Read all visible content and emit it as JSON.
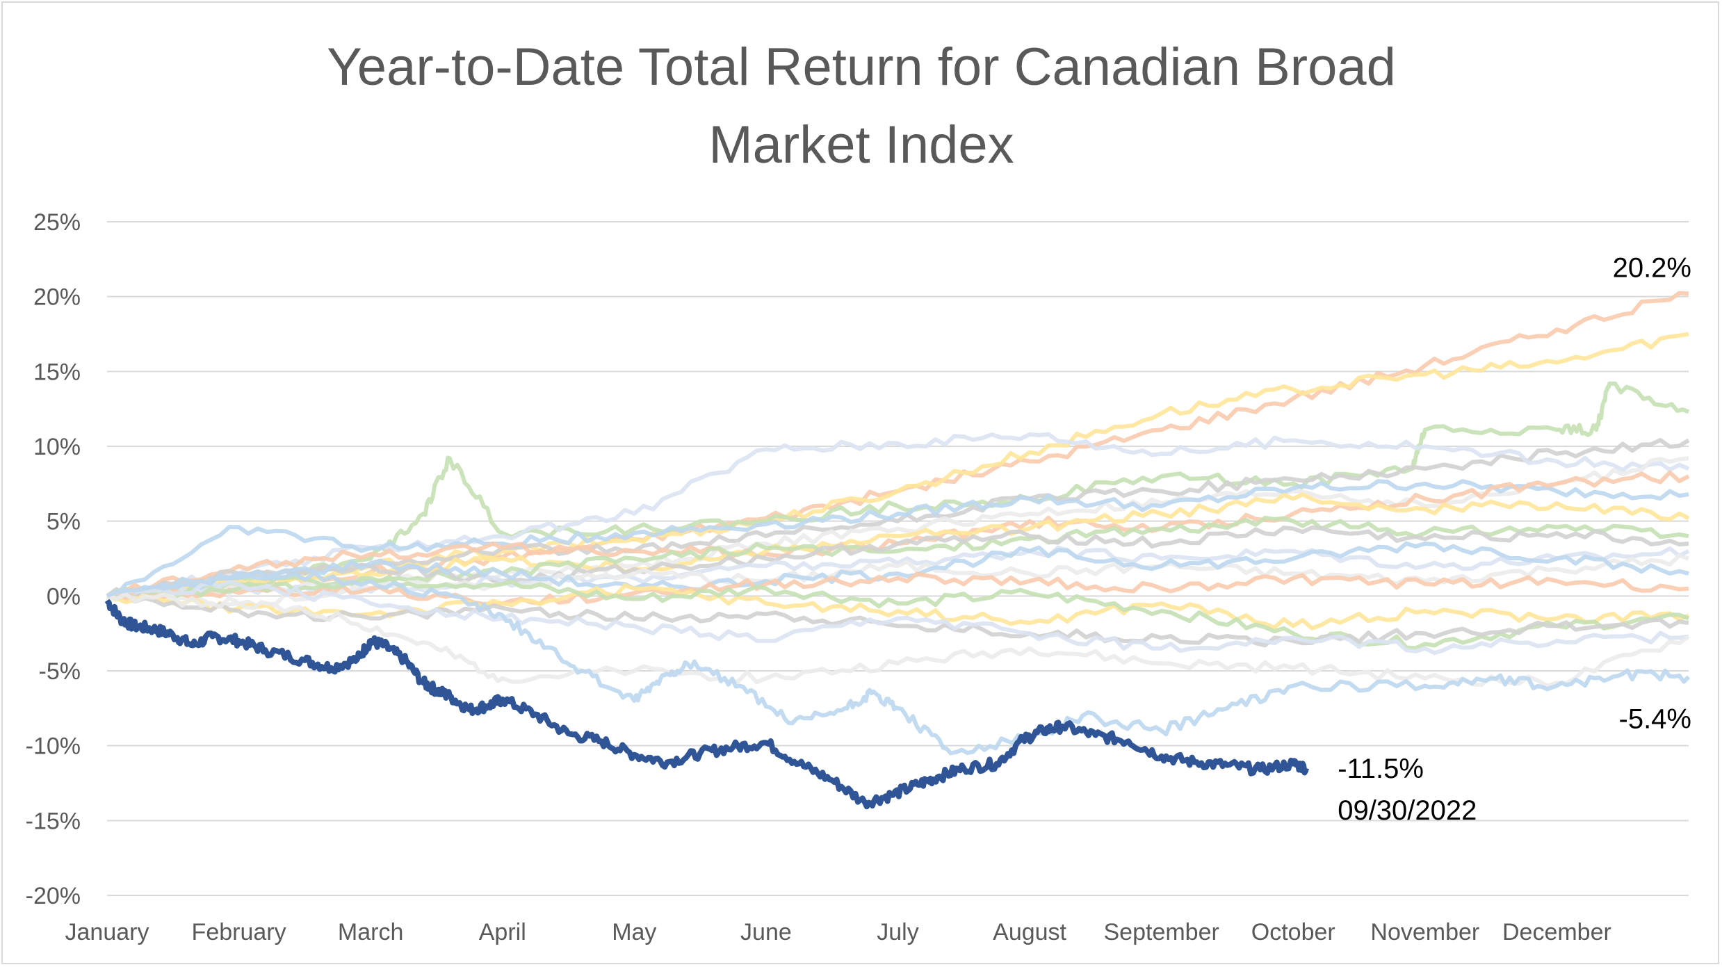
{
  "chart_data": {
    "type": "line",
    "title_lines": [
      "Year-to-Date Total Return for Canadian Broad",
      "Market Index"
    ],
    "xlabel": "",
    "ylabel": "",
    "x_categories": [
      "January",
      "February",
      "March",
      "April",
      "May",
      "June",
      "July",
      "August",
      "September",
      "October",
      "November",
      "December"
    ],
    "x_range": [
      0,
      12
    ],
    "y_ticks": [
      25,
      20,
      15,
      10,
      5,
      0,
      -5,
      -10,
      -15,
      -20
    ],
    "y_tick_labels": [
      "25%",
      "20%",
      "15%",
      "10%",
      "5%",
      "0%",
      "-5%",
      "-10%",
      "-15%",
      "-20%"
    ],
    "ylim": [
      -20,
      25
    ],
    "grid": "horizontal",
    "legend": "none",
    "colors": {
      "highlight": "#2f5597",
      "background_series": [
        "#f8cbad",
        "#ffe699",
        "#c5e0b4",
        "#d0d0d0",
        "#dae3f3",
        "#ebebeb",
        "#bdd7ee"
      ]
    },
    "highlight_series": {
      "x": [
        0,
        0.1,
        0.2,
        0.35,
        0.5,
        0.65,
        0.8,
        1.0,
        1.2,
        1.5,
        1.7,
        1.9,
        2.0,
        2.1,
        2.25,
        2.4,
        2.5,
        2.6,
        2.75,
        2.9,
        3.0,
        3.25,
        3.5,
        3.75,
        4.0,
        4.25,
        4.5,
        4.75,
        5.0,
        5.25,
        5.5,
        5.75,
        5.95,
        6.15,
        6.3,
        6.5,
        6.75,
        6.95,
        7.1,
        7.25,
        7.5,
        7.75,
        8.0,
        8.25,
        8.5,
        8.75,
        9.0,
        9.1
      ],
      "y": [
        -0.3,
        -1.5,
        -2.0,
        -2.2,
        -2.6,
        -3.3,
        -2.7,
        -3.0,
        -3.6,
        -4.3,
        -4.8,
        -4.2,
        -3.0,
        -3.3,
        -4.2,
        -5.8,
        -6.3,
        -6.7,
        -7.6,
        -7.3,
        -6.9,
        -7.9,
        -9.2,
        -9.7,
        -10.6,
        -11.1,
        -10.5,
        -10.1,
        -9.8,
        -11.2,
        -12.3,
        -13.8,
        -13.3,
        -12.6,
        -12.1,
        -11.5,
        -11.2,
        -9.6,
        -9.0,
        -8.7,
        -9.3,
        -9.7,
        -10.7,
        -11.1,
        -11.3,
        -11.6,
        -11.2,
        -11.5
      ]
    },
    "background_series": [
      {
        "x": [
          0,
          1.0,
          2.0,
          3.0,
          4.0,
          5.0,
          6.0,
          7.0,
          8.0,
          9.0,
          10.0,
          11.0,
          12.0
        ],
        "y": [
          0,
          0.6,
          1.6,
          2.6,
          3.8,
          5.2,
          7.0,
          9.0,
          11.1,
          13.2,
          15.4,
          17.8,
          20.2
        ]
      },
      {
        "x": [
          0,
          1.0,
          2.0,
          3.0,
          4.0,
          5.0,
          6.0,
          7.0,
          8.0,
          9.0,
          10.0,
          11.0,
          12.0
        ],
        "y": [
          0,
          0.8,
          2.0,
          3.0,
          3.8,
          5.0,
          7.0,
          9.6,
          12.2,
          13.8,
          14.8,
          15.6,
          17.5
        ]
      },
      {
        "x": [
          0,
          1.0,
          2.0,
          2.4,
          2.6,
          3.0,
          4.0,
          5.0,
          6.0,
          7.0,
          8.0,
          9.0,
          9.9,
          10.0,
          11.0,
          11.3,
          11.4,
          12.0
        ],
        "y": [
          0,
          1.0,
          2.5,
          5.5,
          9.2,
          4.2,
          4.5,
          5.0,
          6.0,
          6.5,
          8.0,
          7.5,
          8.5,
          11.1,
          11.1,
          11.1,
          14.2,
          12.3
        ]
      },
      {
        "x": [
          0,
          1.0,
          2.0,
          3.0,
          4.0,
          5.0,
          6.0,
          7.0,
          8.0,
          9.0,
          10.0,
          11.0,
          12.0
        ],
        "y": [
          0,
          1.2,
          2.0,
          3.2,
          3.0,
          4.0,
          5.0,
          6.5,
          7.0,
          7.8,
          8.5,
          9.5,
          10.4
        ]
      },
      {
        "x": [
          0,
          1.0,
          2.0,
          3.0,
          4.0,
          5.0,
          6.0,
          7.0,
          8.0,
          9.0,
          10.0,
          11.0,
          12.0
        ],
        "y": [
          0,
          1.5,
          3.2,
          4.0,
          5.5,
          9.8,
          10.2,
          10.8,
          9.5,
          10.4,
          10.0,
          9.0,
          8.5
        ]
      },
      {
        "x": [
          0,
          1.0,
          2.0,
          3.0,
          4.0,
          5.0,
          6.0,
          7.0,
          8.0,
          9.0,
          10.0,
          11.0,
          12.0
        ],
        "y": [
          0,
          0.5,
          1.0,
          1.5,
          2.0,
          3.5,
          4.5,
          5.5,
          6.2,
          7.0,
          6.0,
          7.5,
          9.2
        ]
      },
      {
        "x": [
          0,
          1.0,
          2.0,
          3.0,
          4.0,
          5.0,
          6.0,
          7.0,
          8.0,
          9.0,
          10.0,
          11.0,
          12.0
        ],
        "y": [
          0,
          4.6,
          3.2,
          3.5,
          4.2,
          4.8,
          5.5,
          6.5,
          6.0,
          7.2,
          7.5,
          7.0,
          6.8
        ]
      },
      {
        "x": [
          0,
          1.0,
          2.0,
          3.0,
          4.0,
          5.0,
          6.0,
          7.0,
          8.0,
          9.0,
          10.0,
          11.0,
          12.0
        ],
        "y": [
          0,
          2.0,
          2.8,
          3.2,
          3.0,
          2.8,
          3.5,
          5.0,
          4.5,
          5.5,
          6.5,
          7.5,
          8.0
        ]
      },
      {
        "x": [
          0,
          1.0,
          2.0,
          3.0,
          4.0,
          5.0,
          6.0,
          7.0,
          8.0,
          9.0,
          10.0,
          11.0,
          12.0
        ],
        "y": [
          0,
          1.0,
          1.5,
          2.5,
          1.8,
          3.0,
          4.0,
          4.5,
          5.5,
          6.5,
          5.8,
          6.2,
          5.2
        ]
      },
      {
        "x": [
          0,
          1.0,
          2.0,
          3.0,
          4.0,
          5.0,
          6.0,
          7.0,
          8.0,
          9.0,
          10.0,
          11.0,
          12.0
        ],
        "y": [
          0,
          0.8,
          1.2,
          1.5,
          2.5,
          3.2,
          3.0,
          3.8,
          4.5,
          5.0,
          4.2,
          4.6,
          4.0
        ]
      },
      {
        "x": [
          0,
          1.0,
          2.0,
          3.0,
          4.0,
          5.0,
          6.0,
          7.0,
          8.0,
          9.0,
          10.0,
          11.0,
          12.0
        ],
        "y": [
          0,
          1.5,
          2.0,
          1.0,
          1.8,
          2.5,
          3.5,
          4.0,
          3.5,
          4.5,
          3.8,
          4.2,
          3.5
        ]
      },
      {
        "x": [
          0,
          1.0,
          2.0,
          3.0,
          4.0,
          5.0,
          6.0,
          7.0,
          8.0,
          9.0,
          10.0,
          11.0,
          12.0
        ],
        "y": [
          0,
          0.5,
          0.3,
          1.0,
          1.2,
          2.0,
          2.2,
          3.0,
          2.5,
          3.0,
          2.0,
          2.5,
          3.0
        ]
      },
      {
        "x": [
          0,
          1.0,
          2.0,
          3.0,
          4.0,
          5.0,
          6.0,
          7.0,
          8.0,
          9.0,
          10.0,
          11.0,
          12.0
        ],
        "y": [
          0,
          -0.5,
          0.5,
          0.8,
          1.5,
          1.0,
          2.0,
          1.5,
          2.0,
          1.5,
          1.0,
          1.8,
          2.5
        ]
      },
      {
        "x": [
          0,
          1.0,
          2.0,
          3.0,
          4.0,
          5.0,
          6.0,
          7.0,
          8.0,
          9.0,
          10.0,
          11.0,
          12.0
        ],
        "y": [
          0,
          1.2,
          2.2,
          1.5,
          0.5,
          1.0,
          1.5,
          3.0,
          2.0,
          2.5,
          3.5,
          2.5,
          1.5
        ]
      },
      {
        "x": [
          0,
          1.0,
          2.0,
          3.0,
          4.0,
          5.0,
          6.0,
          7.0,
          8.0,
          9.0,
          10.0,
          11.0,
          12.0
        ],
        "y": [
          0,
          0.2,
          0.5,
          -0.5,
          0.2,
          0.8,
          1.2,
          1.0,
          0.5,
          1.2,
          0.8,
          1.0,
          0.5
        ]
      },
      {
        "x": [
          0,
          1.0,
          2.0,
          3.0,
          4.0,
          5.0,
          6.0,
          7.0,
          8.0,
          9.0,
          10.0,
          11.0,
          12.0
        ],
        "y": [
          0,
          -0.8,
          -1.2,
          -0.5,
          0.5,
          -0.5,
          -1.0,
          -1.8,
          -0.5,
          -2.0,
          -1.0,
          -1.5,
          -1.3
        ]
      },
      {
        "x": [
          0,
          1.0,
          2.0,
          3.0,
          4.0,
          5.0,
          6.0,
          7.0,
          8.0,
          9.0,
          10.0,
          11.0,
          12.0
        ],
        "y": [
          0,
          0.5,
          1.0,
          0.8,
          -0.2,
          0.5,
          -0.5,
          0.2,
          -1.0,
          -2.5,
          -3.2,
          -2.0,
          -1.5
        ]
      },
      {
        "x": [
          0,
          1.0,
          2.0,
          3.0,
          4.0,
          5.0,
          6.0,
          7.0,
          8.0,
          9.0,
          10.0,
          11.0,
          12.0
        ],
        "y": [
          0,
          -1.0,
          -1.5,
          -0.8,
          -1.5,
          -1.2,
          -2.0,
          -2.5,
          -2.8,
          -3.0,
          -2.5,
          -2.0,
          -1.8
        ]
      },
      {
        "x": [
          0,
          1.0,
          2.0,
          3.0,
          4.0,
          5.0,
          6.0,
          7.0,
          8.0,
          9.0,
          10.0,
          11.0,
          12.0
        ],
        "y": [
          0,
          0.8,
          -0.5,
          -1.5,
          -2.0,
          -3.0,
          -1.5,
          -2.5,
          -3.5,
          -2.8,
          -3.5,
          -3.0,
          -2.7
        ]
      },
      {
        "x": [
          0,
          1.0,
          1.8,
          2.5,
          3.0,
          4.0,
          5.0,
          6.0,
          7.0,
          8.0,
          9.0,
          10.0,
          11.0,
          12.0
        ],
        "y": [
          0,
          -0.5,
          -1.5,
          -3.5,
          -5.5,
          -5.0,
          -5.5,
          -4.5,
          -3.5,
          -4.5,
          -4.8,
          -5.5,
          -5.8,
          -2.7
        ]
      },
      {
        "x": [
          0,
          1.0,
          2.0,
          2.8,
          3.2,
          3.6,
          4.0,
          4.2,
          4.4,
          4.8,
          5.2,
          5.6,
          5.8,
          6.0,
          6.4,
          7.0,
          7.4,
          8.0,
          8.5,
          9.0,
          10.0,
          10.5,
          11.0,
          11.5,
          12.0
        ],
        "y": [
          0,
          1.5,
          1.0,
          -0.5,
          -2.5,
          -5.0,
          -7.0,
          -5.5,
          -4.5,
          -6.0,
          -8.5,
          -7.5,
          -6.5,
          -7.5,
          -10.5,
          -9.5,
          -8.0,
          -9.0,
          -7.5,
          -6.0,
          -6.0,
          -5.5,
          -6.0,
          -5.2,
          -5.4
        ]
      }
    ],
    "annotations": [
      {
        "text": "20.2%",
        "x": 12.0,
        "y": 20.2
      },
      {
        "text": "-5.4%",
        "x": 12.0,
        "y": -5.4
      },
      {
        "text": "-11.5%",
        "x": 9.1,
        "y": -11.5
      },
      {
        "text": "09/30/2022",
        "x": 9.1,
        "y": -11.5
      }
    ]
  }
}
